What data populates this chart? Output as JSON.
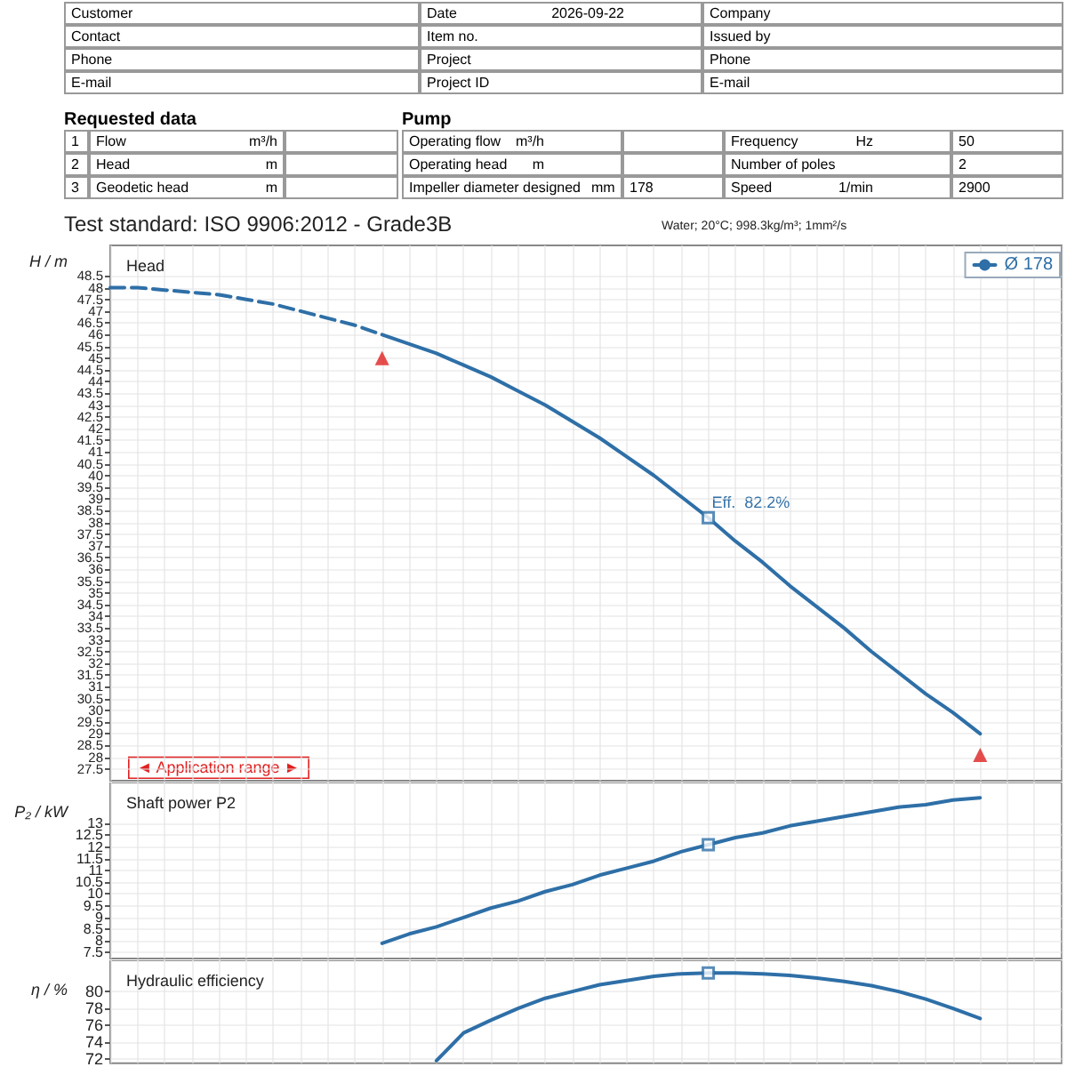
{
  "chart_data": [
    {
      "type": "other",
      "annotations": [
        "Customer",
        "Date",
        "2026-09-22",
        "Company",
        "Contact",
        "Item no.",
        "Issued by",
        "Phone",
        "Project",
        "Phone",
        "E-mail",
        "Project ID",
        "E-mail",
        "Requested data",
        "1",
        "Flow",
        "m³/h",
        "2",
        "Head",
        "m",
        "3",
        "Geodetic head",
        "m",
        "Pump",
        "Operating flow",
        "m³/h",
        "Frequency",
        "Hz",
        "50",
        "Operating head",
        "m",
        "Number of poles",
        "2",
        "Impeller diameter designed",
        "mm",
        "178",
        "Speed",
        "1/min",
        "2900"
      ]
    },
    {
      "type": "line",
      "title": "Head",
      "ylabel": "H / m",
      "annotations": [
        "Test standard: ISO 9906:2012 - Grade3B",
        "Water; 20°C; 998.3kg/m³; 1mm²/s",
        "◄ Application range ►",
        "Eff.  82.2%"
      ],
      "categories": [
        null,
        null,
        null,
        null,
        null,
        null,
        null,
        null,
        null,
        null,
        null,
        null,
        null,
        null,
        null,
        null,
        null,
        null,
        null,
        null,
        null,
        null,
        null,
        null,
        null,
        null,
        null,
        null,
        null,
        null,
        null,
        null,
        null,
        null,
        null,
        null
      ],
      "tick_labels": "y",
      "grid": true,
      "legend": "top right",
      "ylim": [
        27,
        49.8
      ],
      "yticks": [
        27.5,
        28,
        28.5,
        29,
        29.5,
        30,
        30.5,
        31,
        31.5,
        32,
        32.5,
        33,
        33.5,
        34,
        34.5,
        35,
        35.5,
        36,
        36.5,
        37,
        37.5,
        38,
        38.5,
        39,
        39.5,
        40,
        40.5,
        41,
        41.5,
        42,
        42.5,
        43,
        43.5,
        44,
        44.5,
        45,
        45.5,
        46,
        46.5,
        47,
        47.5,
        48,
        48.5
      ],
      "series": [
        {
          "color": "#2e6fa7",
          "line_style": "dashed",
          "values": [
            48.0,
            48.0,
            47.9,
            47.8,
            47.7,
            47.5,
            47.3,
            47.0,
            46.7,
            46.4,
            46.0,
            null,
            null,
            null,
            null,
            null,
            null,
            null,
            null,
            null,
            null,
            null,
            null,
            null,
            null,
            null,
            null,
            null,
            null,
            null,
            null,
            null,
            null,
            null,
            null,
            null
          ]
        },
        {
          "name": "Ø 178",
          "color": "#2e6fa7",
          "values": [
            null,
            null,
            null,
            null,
            null,
            null,
            null,
            null,
            null,
            null,
            46.0,
            45.6,
            45.2,
            44.7,
            44.2,
            43.6,
            43.0,
            42.3,
            41.6,
            40.8,
            40.0,
            39.1,
            38.2,
            37.2,
            36.3,
            35.3,
            34.4,
            33.5,
            32.5,
            31.6,
            30.7,
            29.9,
            29.0,
            null,
            null,
            null
          ]
        },
        {
          "type": "scatter",
          "marker": "square",
          "color": "#2e6fa7",
          "values": [
            null,
            null,
            null,
            null,
            null,
            null,
            null,
            null,
            null,
            null,
            null,
            null,
            null,
            null,
            null,
            null,
            null,
            null,
            null,
            null,
            null,
            null,
            38.2,
            null,
            null,
            null,
            null,
            null,
            null,
            null,
            null,
            null,
            null,
            null,
            null,
            null
          ]
        },
        {
          "type": "scatter",
          "marker": "triangle",
          "color": "#e02020",
          "values": [
            null,
            null,
            null,
            null,
            null,
            null,
            null,
            null,
            null,
            null,
            45.0,
            null,
            null,
            null,
            null,
            null,
            null,
            null,
            null,
            null,
            null,
            null,
            null,
            null,
            null,
            null,
            null,
            null,
            null,
            null,
            null,
            null,
            28.1,
            null,
            null,
            null
          ]
        }
      ]
    },
    {
      "type": "line",
      "title": "Shaft power P2",
      "ylabel": "P₂ / kW",
      "categories": [
        null,
        null,
        null,
        null,
        null,
        null,
        null,
        null,
        null,
        null,
        null,
        null,
        null,
        null,
        null,
        null,
        null,
        null,
        null,
        null,
        null,
        null,
        null,
        null,
        null,
        null,
        null,
        null,
        null,
        null,
        null,
        null,
        null,
        null,
        null,
        null
      ],
      "tick_labels": "y",
      "grid": true,
      "ylim": [
        7.25,
        14.75
      ],
      "yticks": [
        7.5,
        8,
        8.5,
        9,
        9.5,
        10,
        10.5,
        11,
        11.5,
        12,
        12.5,
        13
      ],
      "series": [
        {
          "color": "#2e6fa7",
          "values": [
            null,
            null,
            null,
            null,
            null,
            null,
            null,
            null,
            null,
            null,
            7.9,
            8.3,
            8.6,
            9.0,
            9.4,
            9.7,
            10.1,
            10.4,
            10.8,
            11.1,
            11.4,
            11.8,
            12.1,
            12.4,
            12.6,
            12.9,
            13.1,
            13.3,
            13.5,
            13.7,
            13.8,
            14.0,
            14.1,
            null,
            null,
            null
          ]
        },
        {
          "type": "scatter",
          "marker": "square",
          "color": "#2e6fa7",
          "values": [
            null,
            null,
            null,
            null,
            null,
            null,
            null,
            null,
            null,
            null,
            null,
            null,
            null,
            null,
            null,
            null,
            null,
            null,
            null,
            null,
            null,
            null,
            12.1,
            null,
            null,
            null,
            null,
            null,
            null,
            null,
            null,
            null,
            null,
            null,
            null,
            null
          ]
        }
      ]
    },
    {
      "type": "line",
      "title": "Hydraulic efficiency",
      "ylabel": "η / %",
      "categories": [
        null,
        null,
        null,
        null,
        null,
        null,
        null,
        null,
        null,
        null,
        null,
        null,
        null,
        null,
        null,
        null,
        null,
        null,
        null,
        null,
        null,
        null,
        null,
        null,
        null,
        null,
        null,
        null,
        null,
        null,
        null,
        null,
        null,
        null,
        null,
        null
      ],
      "tick_labels": "y",
      "grid": true,
      "ylim": [
        71.5,
        83.7
      ],
      "yticks": [
        72,
        74,
        76,
        78,
        80
      ],
      "series": [
        {
          "color": "#2e6fa7",
          "values": [
            null,
            null,
            null,
            null,
            null,
            null,
            null,
            null,
            null,
            null,
            null,
            null,
            71.8,
            75.1,
            76.6,
            78.0,
            79.2,
            80.0,
            80.8,
            81.3,
            81.8,
            82.1,
            82.2,
            82.2,
            82.1,
            81.9,
            81.6,
            81.2,
            80.7,
            80.0,
            79.1,
            78.0,
            76.8,
            null,
            null,
            null
          ]
        },
        {
          "type": "scatter",
          "marker": "square",
          "color": "#2e6fa7",
          "values": [
            null,
            null,
            null,
            null,
            null,
            null,
            null,
            null,
            null,
            null,
            null,
            null,
            null,
            null,
            null,
            null,
            null,
            null,
            null,
            null,
            null,
            null,
            82.2,
            null,
            null,
            null,
            null,
            null,
            null,
            null,
            null,
            null,
            null,
            null,
            null,
            null
          ]
        }
      ]
    }
  ]
}
